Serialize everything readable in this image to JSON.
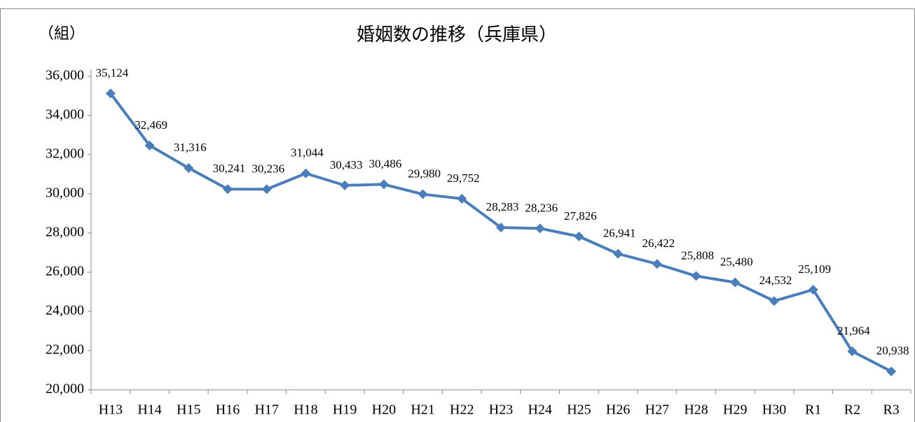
{
  "chart_data": {
    "type": "line",
    "title": "婚姻数の推移（兵庫県）",
    "y_label": "（組）",
    "categories": [
      "H13",
      "H14",
      "H15",
      "H16",
      "H17",
      "H18",
      "H19",
      "H20",
      "H21",
      "H22",
      "H23",
      "H24",
      "H25",
      "H26",
      "H27",
      "H28",
      "H29",
      "H30",
      "R1",
      "R2",
      "R3"
    ],
    "series": [
      {
        "name": "婚姻数",
        "color": "#4a7ebb",
        "values": [
          35124,
          32469,
          31316,
          30241,
          30236,
          31044,
          30433,
          30486,
          29980,
          29752,
          28283,
          28236,
          27826,
          26941,
          26422,
          25808,
          25480,
          24532,
          25109,
          21964,
          20938
        ],
        "value_labels": [
          "35,124",
          "32,469",
          "31,316",
          "30,241",
          "30,236",
          "31,044",
          "30,433",
          "30,486",
          "29,980",
          "29,752",
          "28,283",
          "28,236",
          "27,826",
          "26,941",
          "26,422",
          "25,808",
          "25,480",
          "24,532",
          "25,109",
          "21,964",
          "20,938"
        ]
      }
    ],
    "ylim": [
      20000,
      36000
    ],
    "yticks": [
      {
        "value": 20000,
        "label": "20,000"
      },
      {
        "value": 22000,
        "label": "22,000"
      },
      {
        "value": 24000,
        "label": "24,000"
      },
      {
        "value": 26000,
        "label": "26,000"
      },
      {
        "value": 28000,
        "label": "28,000"
      },
      {
        "value": 30000,
        "label": "30,000"
      },
      {
        "value": 32000,
        "label": "32,000"
      },
      {
        "value": 34000,
        "label": "34,000"
      },
      {
        "value": 36000,
        "label": "36,000"
      }
    ],
    "grid": false
  }
}
